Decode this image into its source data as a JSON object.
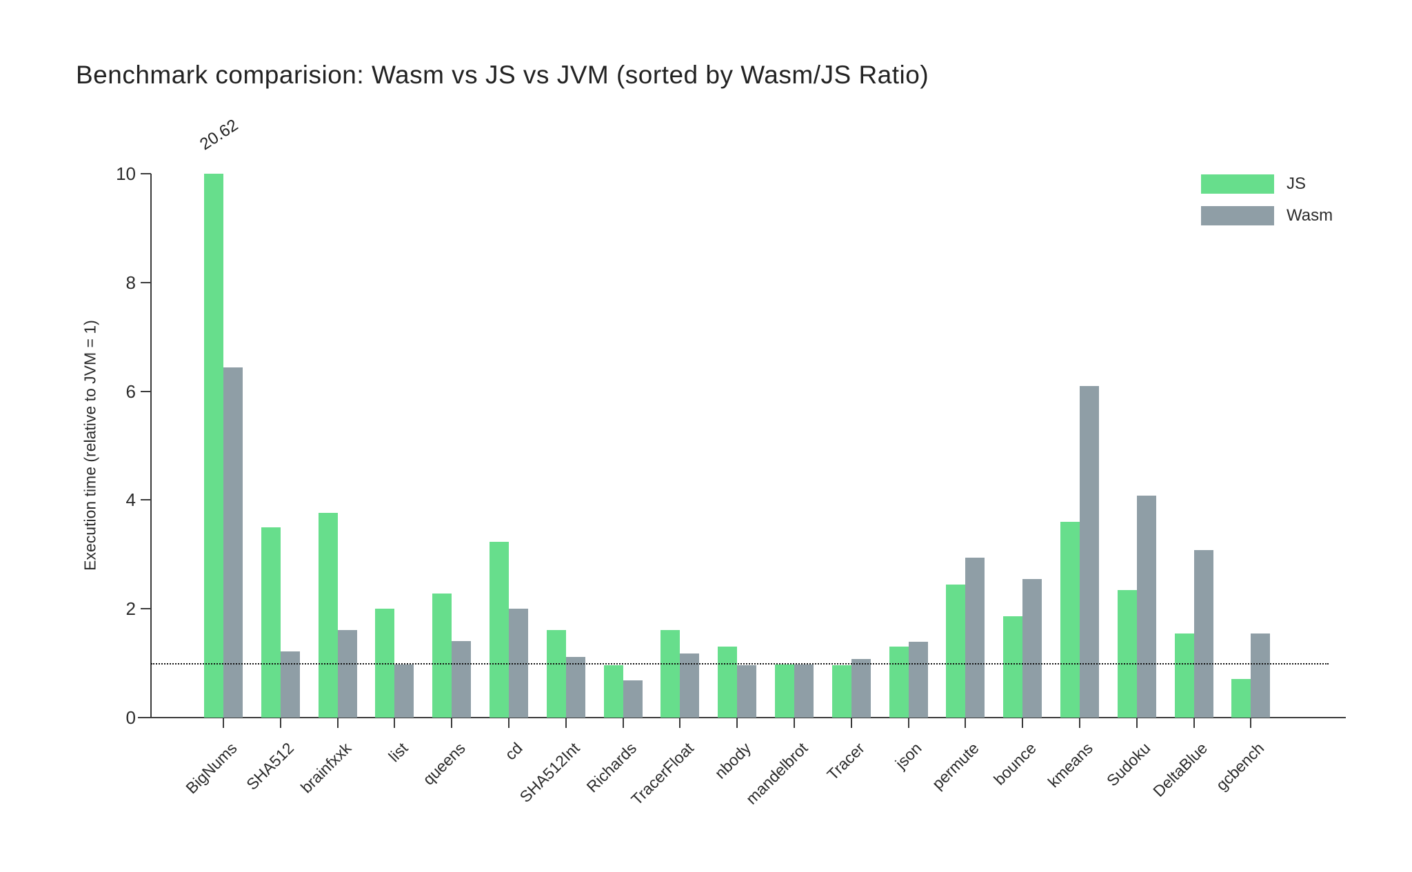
{
  "title": "Benchmark comparision: Wasm vs JS vs JVM (sorted by Wasm/JS Ratio)",
  "legend": {
    "items": [
      {
        "label": "JS",
        "color": "#67DE8C"
      },
      {
        "label": "Wasm",
        "color": "#8F9EA6"
      }
    ]
  },
  "y_axis": {
    "title": "Execution time (relative to JVM = 1)"
  },
  "annotation": {
    "label": "20.62"
  },
  "chart_data": {
    "type": "bar",
    "title": "Benchmark comparision: Wasm vs JS vs JVM (sorted by Wasm/JS Ratio)",
    "categories": [
      "BigNums",
      "SHA512",
      "brainfxxk",
      "list",
      "queens",
      "cd",
      "SHA512Int",
      "Richards",
      "TracerFloat",
      "nbody",
      "mandelbrot",
      "Tracer",
      "json",
      "permute",
      "bounce",
      "kmeans",
      "Sudoku",
      "DeltaBlue",
      "gcbench"
    ],
    "series": [
      {
        "name": "JS",
        "color": "#67DE8C",
        "values": [
          20.62,
          3.5,
          3.76,
          2.0,
          2.28,
          3.23,
          1.61,
          0.96,
          1.61,
          1.31,
          0.98,
          0.96,
          1.3,
          2.45,
          1.86,
          3.6,
          2.34,
          1.55,
          0.71
        ]
      },
      {
        "name": "Wasm",
        "color": "#8F9EA6",
        "values": [
          6.44,
          1.22,
          1.61,
          0.97,
          1.41,
          2.0,
          1.11,
          0.69,
          1.18,
          0.96,
          0.97,
          1.08,
          1.4,
          2.94,
          2.55,
          6.1,
          4.08,
          3.08,
          1.55
        ]
      }
    ],
    "xlabel": "",
    "ylabel": "Execution time (relative to JVM = 1)",
    "ylim": [
      0,
      10
    ],
    "yticks": [
      0,
      2,
      4,
      6,
      8,
      10
    ],
    "reference_line_y": 1,
    "grid": false,
    "legend_position": "top-right",
    "clipped_annotations": [
      {
        "series": "JS",
        "category": "BigNums",
        "value": 20.62,
        "label": "20.62"
      }
    ]
  }
}
